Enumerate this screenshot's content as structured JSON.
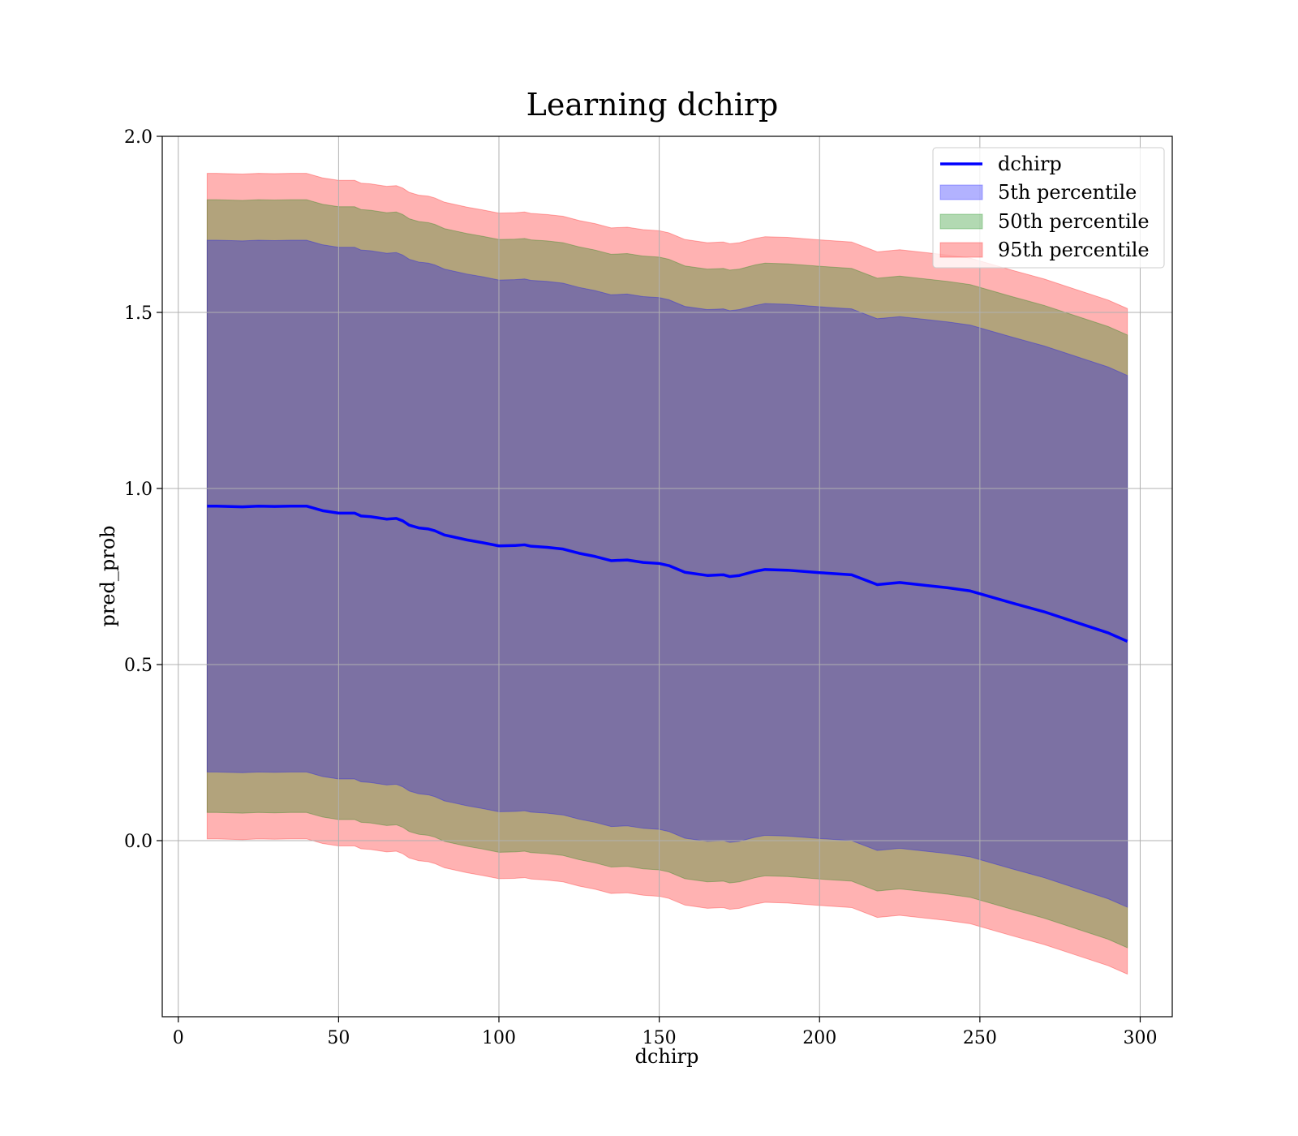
{
  "chart_data": {
    "type": "area",
    "title": "Learning dchirp",
    "xlabel": "dchirp",
    "ylabel": "pred_prob",
    "xlim": [
      -5,
      310
    ],
    "ylim": [
      -0.5,
      2.0
    ],
    "xticks": [
      0,
      50,
      100,
      150,
      200,
      250,
      300
    ],
    "yticks": [
      0.0,
      0.5,
      1.0,
      1.5,
      2.0
    ],
    "grid": true,
    "legend_position": "top-right",
    "x": [
      9,
      12,
      20,
      25,
      30,
      35,
      40,
      45,
      50,
      55,
      57,
      60,
      65,
      68,
      70,
      72,
      75,
      78,
      80,
      83,
      86,
      90,
      95,
      100,
      105,
      108,
      110,
      115,
      120,
      125,
      130,
      135,
      140,
      145,
      150,
      153,
      158,
      165,
      170,
      172,
      175,
      180,
      183,
      190,
      200,
      210,
      218,
      225,
      240,
      247,
      260,
      270,
      280,
      290,
      296
    ],
    "series": [
      {
        "name": "dchirp",
        "kind": "line",
        "color": "#0000ff",
        "values": [
          0.95,
          0.95,
          0.948,
          0.95,
          0.949,
          0.95,
          0.95,
          0.937,
          0.93,
          0.93,
          0.922,
          0.92,
          0.913,
          0.915,
          0.908,
          0.896,
          0.888,
          0.885,
          0.88,
          0.868,
          0.862,
          0.854,
          0.846,
          0.837,
          0.838,
          0.84,
          0.836,
          0.833,
          0.828,
          0.816,
          0.807,
          0.795,
          0.797,
          0.79,
          0.787,
          0.781,
          0.762,
          0.753,
          0.755,
          0.75,
          0.753,
          0.765,
          0.77,
          0.768,
          0.761,
          0.755,
          0.727,
          0.733,
          0.718,
          0.709,
          0.675,
          0.65,
          0.62,
          0.59,
          0.566
        ]
      },
      {
        "name": "5th percentile",
        "kind": "band",
        "color": "#0000ff",
        "half_width": 0.755
      },
      {
        "name": "50th percentile",
        "kind": "band",
        "color": "#008000",
        "half_width": 0.87
      },
      {
        "name": "95th percentile",
        "kind": "band",
        "color": "#ff0000",
        "half_width": 0.945
      }
    ]
  }
}
